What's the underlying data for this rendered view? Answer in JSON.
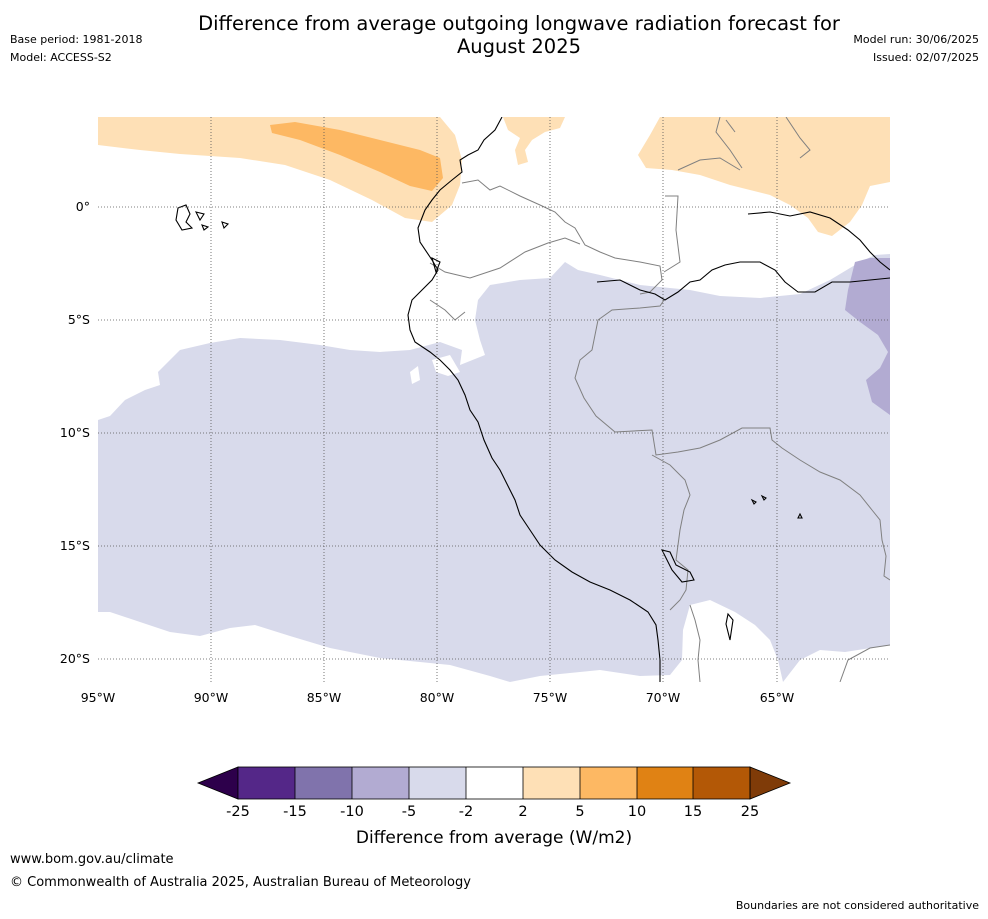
{
  "header": {
    "title_line1": "Difference from average outgoing longwave radiation forecast for",
    "title_line2": "August 2025",
    "base_period": "Base period: 1981-2018",
    "model": "Model: ACCESS-S2",
    "model_run": "Model run: 30/06/2025",
    "issued": "Issued: 02/07/2025"
  },
  "map": {
    "lon_labels": [
      "95°W",
      "90°W",
      "85°W",
      "80°W",
      "75°W",
      "70°W",
      "65°W"
    ],
    "lat_labels": [
      "0°",
      "5°S",
      "10°S",
      "15°S",
      "20°S"
    ],
    "colors": {
      "light_orange": "#fee0b6",
      "orange": "#fdb863",
      "light_purple": "#d8daeb",
      "purple": "#b2abd2"
    }
  },
  "colorbar": {
    "labels": [
      "-25",
      "-15",
      "-10",
      "-5",
      "-2",
      "2",
      "5",
      "10",
      "15",
      "25"
    ],
    "colors": [
      "#2d004b",
      "#542788",
      "#8073ac",
      "#b2abd2",
      "#d8daeb",
      "#ffffff",
      "#fee0b6",
      "#fdb863",
      "#e08214",
      "#b35806",
      "#7f3b08"
    ],
    "label": "Difference from average (W/m2)"
  },
  "footer": {
    "url": "www.bom.gov.au/climate",
    "copyright": "© Commonwealth of Australia 2025, Australian Bureau of Meteorology",
    "disclaimer": "Boundaries are not considered authoritative"
  }
}
